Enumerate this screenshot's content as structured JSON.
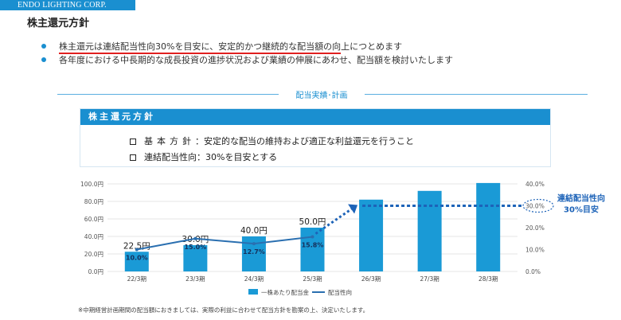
{
  "header": {
    "company": "ENDO LIGHTING CORP.",
    "title": "株主還元方針"
  },
  "bullets": [
    "株主還元は連結配当性向30%を目安に、安定的かつ継続的な配当額の向上につとめます",
    "各年度における中長期的な成長投資の進捗状況および業績の伸展にあわせ、配当額を検討いたします"
  ],
  "section_label": "配当実績･計画",
  "policy": {
    "header": "株主還元方針",
    "rows": [
      {
        "label": "基本方針",
        "text": "：安定的な配当の維持および適正な利益還元を行うこと"
      },
      {
        "label": "連結配当性向",
        "text": "：30%を目安とする"
      }
    ]
  },
  "chart_data": {
    "type": "bar",
    "categories": [
      "22/3期",
      "23/3期",
      "24/3期",
      "25/3期",
      "26/3期",
      "27/3期",
      "28/3期"
    ],
    "series": [
      {
        "name": "一株あたり配当金",
        "type": "bar",
        "axis": "left",
        "color": "#1a9ad6",
        "values": [
          22.5,
          30,
          40,
          50,
          82,
          92,
          101
        ]
      },
      {
        "name": "配当性向",
        "type": "line",
        "axis": "right",
        "color": "#2a6fb0",
        "values": [
          10.0,
          15.0,
          12.7,
          15.8,
          null,
          null,
          null
        ]
      }
    ],
    "dividend_labels": [
      "22.5円",
      "30.0円",
      "40.0円",
      "50.0円"
    ],
    "payout_labels": [
      "10.0%",
      "15.0%",
      "12.7%",
      "15.8%"
    ],
    "target": {
      "value": 30,
      "label_line1": "連結配当性向",
      "label_line2": "30%目安",
      "from_index": 3
    },
    "left_axis": {
      "ticks": [
        "0.0円",
        "20.0円",
        "40.0円",
        "60.0円",
        "80.0円",
        "100.0円"
      ],
      "ylim": [
        0,
        100
      ]
    },
    "right_axis": {
      "ticks": [
        "0.0%",
        "10.0%",
        "20.0%",
        "30.0%",
        "40.0%"
      ],
      "ylim": [
        0,
        40
      ]
    },
    "legend": {
      "bar": "一株あたり配当金",
      "line": "配当性向",
      "position": "bottom"
    }
  },
  "footnote": "※中期経営計画期間の配当額におきましては、実際の利益に合わせて配当方針を勘案の上、決定いたします。"
}
